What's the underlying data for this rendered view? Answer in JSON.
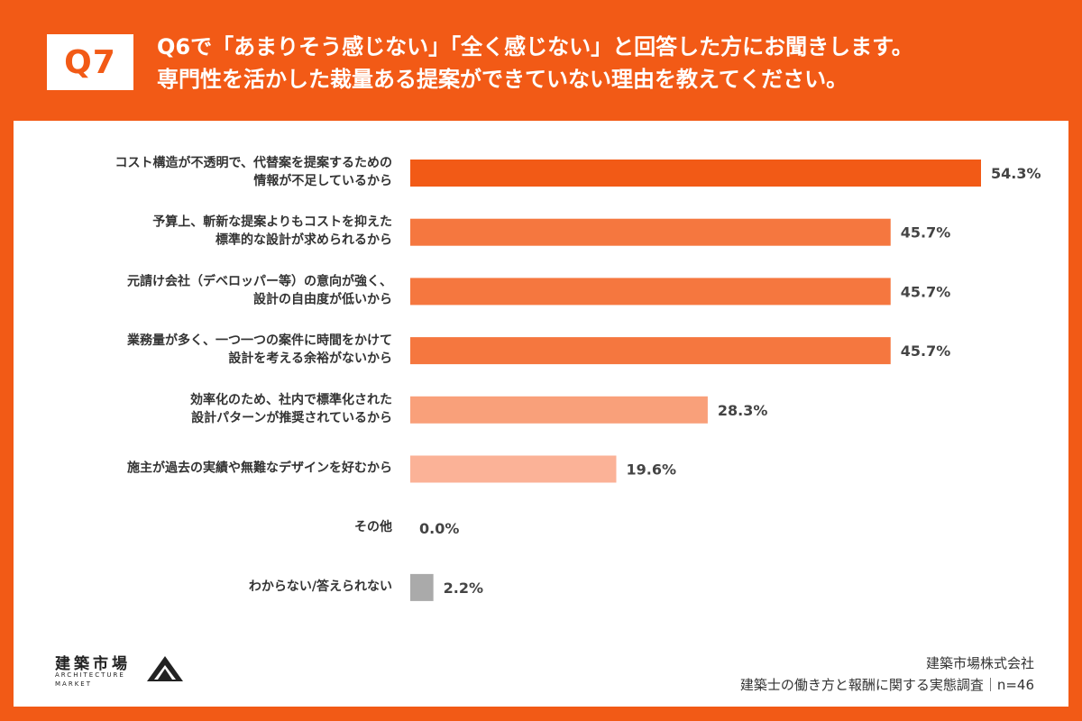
{
  "header": {
    "badge": "Q7",
    "question_line1": "Q6で「あまりそう感じない」「全く感じない」と回答した方にお聞きします。",
    "question_line2": "専門性を活かした裁量ある提案ができていない理由を教えてください。"
  },
  "chart_data": {
    "type": "bar",
    "orientation": "horizontal",
    "categories": [
      [
        "コスト構造が不透明で、代替案を提案するための",
        "情報が不足しているから"
      ],
      [
        "予算上、斬新な提案よりもコストを抑えた",
        "標準的な設計が求められるから"
      ],
      [
        "元請け会社（デベロッパー等）の意向が強く、",
        "設計の自由度が低いから"
      ],
      [
        "業務量が多く、一つ一つの案件に時間をかけて",
        "設計を考える余裕がないから"
      ],
      [
        "効率化のため、社内で標準化された",
        "設計パターンが推奨されているから"
      ],
      [
        "施主が過去の実績や無難なデザインを好むから"
      ],
      [
        "その他"
      ],
      [
        "わからない/答えられない"
      ]
    ],
    "values": [
      54.3,
      45.7,
      45.7,
      45.7,
      28.3,
      19.6,
      0.0,
      2.2
    ],
    "value_labels": [
      "54.3%",
      "45.7%",
      "45.7%",
      "45.7%",
      "28.3%",
      "19.6%",
      "0.0%",
      "2.2%"
    ],
    "bar_colors": [
      "#F25A16",
      "#F5773F",
      "#F5773F",
      "#F5773F",
      "#F9A07A",
      "#FBB297",
      "#FBB297",
      "#AAAAAA"
    ],
    "xlim": [
      0,
      54.3
    ],
    "grid": false
  },
  "footer": {
    "logo_text": "建築市場",
    "logo_sub": "ARCHITECTURE MARKET",
    "company": "建築市場株式会社",
    "survey": "建築士の働き方と報酬に関する実態調査｜n=46"
  }
}
